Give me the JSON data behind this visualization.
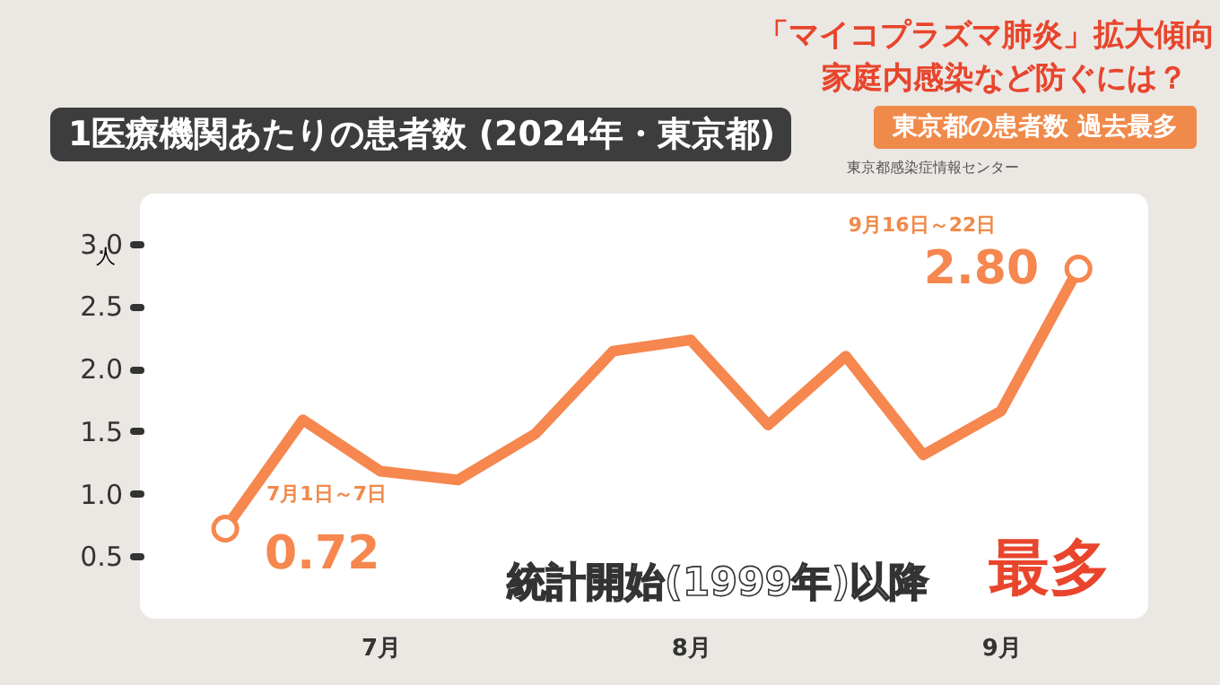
{
  "chart_data": {
    "type": "line",
    "title": "1医療機関あたりの患者数 (2024年・東京都)",
    "ylabel": "人",
    "categories": [
      null,
      null,
      "7月",
      null,
      null,
      null,
      "8月",
      null,
      null,
      null,
      "9月",
      null
    ],
    "series": [
      {
        "color": "#f5874f",
        "values": [
          0.72,
          1.59,
          1.18,
          1.11,
          1.48,
          2.14,
          2.23,
          1.55,
          2.1,
          1.31,
          1.66,
          2.8
        ],
        "value_labels": [
          "0.72",
          null,
          null,
          null,
          null,
          null,
          null,
          null,
          null,
          null,
          null,
          "2.80"
        ]
      }
    ],
    "ylim": [
      0,
      3.4
    ],
    "yticks": [
      {
        "value": 0.5,
        "label": "0.5"
      },
      {
        "value": 1,
        "label": "1.0"
      },
      {
        "value": 1.5,
        "label": "1.5"
      },
      {
        "value": 2,
        "label": "2.0"
      },
      {
        "value": 2.5,
        "label": "2.5"
      },
      {
        "value": 3,
        "label": "3.0"
      }
    ],
    "grid": false,
    "line_style": "solid",
    "annotations": [
      "7月1日～7日",
      "9月16日～22日",
      "統計開始(1999年)以降",
      "最多",
      "「マイコプラズマ肺炎」拡大傾向",
      "家庭内感染など防ぐには？",
      "東京都の患者数 過去最多",
      "東京都感染症情報センター"
    ]
  }
}
